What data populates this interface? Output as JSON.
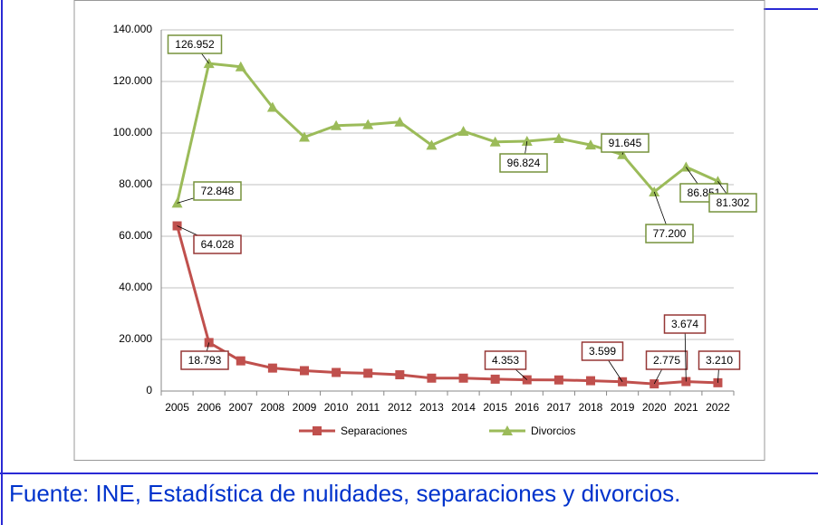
{
  "chart_data": {
    "type": "line",
    "categories": [
      "2005",
      "2006",
      "2007",
      "2008",
      "2009",
      "2010",
      "2011",
      "2012",
      "2013",
      "2014",
      "2015",
      "2016",
      "2017",
      "2018",
      "2019",
      "2020",
      "2021",
      "2022"
    ],
    "series": [
      {
        "name": "Separaciones",
        "color": "#c0504d",
        "values": [
          64028,
          18793,
          11700,
          8900,
          7900,
          7200,
          6900,
          6300,
          5000,
          5000,
          4600,
          4353,
          4300,
          4000,
          3599,
          2775,
          3674,
          3210
        ],
        "value_labels": [
          "64.028",
          "18.793",
          null,
          null,
          null,
          null,
          null,
          null,
          null,
          null,
          null,
          "4.353",
          null,
          null,
          "3.599",
          "2.775",
          "3.674",
          "3.210"
        ]
      },
      {
        "name": "Divorcios",
        "color": "#9bbb59",
        "values": [
          72848,
          126952,
          125700,
          110000,
          98400,
          102900,
          103300,
          104300,
          95300,
          100700,
          96600,
          96824,
          97900,
          95400,
          91645,
          77200,
          86851,
          81302
        ],
        "value_labels": [
          "72.848",
          "126.952",
          null,
          null,
          null,
          null,
          null,
          null,
          null,
          null,
          null,
          "96.824",
          null,
          null,
          "91.645",
          "77.200",
          "86.851",
          "81.302"
        ]
      }
    ],
    "ylim": [
      0,
      140000
    ],
    "yticks": [
      0,
      {
        "value": 20000,
        "label": "20.000"
      },
      {
        "value": 40000,
        "label": "40.000"
      },
      {
        "value": 60000,
        "label": "60.000"
      },
      {
        "value": 80000,
        "label": "80.000"
      },
      {
        "value": 100000,
        "label": "100.000"
      },
      {
        "value": 120000,
        "label": "120.000"
      },
      {
        "value": 140000,
        "label": "140.000"
      }
    ],
    "grid": true,
    "legend": "bottom"
  },
  "footer": "Fuente: INE, Estadística de nulidades, separaciones y divorcios."
}
